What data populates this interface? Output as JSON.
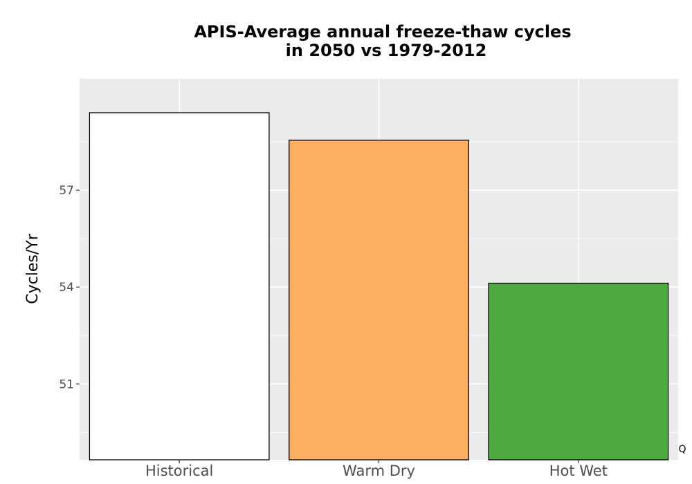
{
  "chart_data": {
    "type": "bar",
    "title_line1": "APIS-Average annual freeze-thaw cycles",
    "title_line2": "in 2050 vs 1979-2012",
    "ylabel": "Cycles/Yr",
    "xlabel": "",
    "categories": [
      "Historical",
      "Warm Dry",
      "Hot Wet"
    ],
    "values": [
      59.4,
      58.55,
      54.12
    ],
    "fill_colors": [
      "#ffffff",
      "#fdae61",
      "#4daa3f"
    ],
    "ylim": [
      48.65,
      60.45
    ],
    "yticks": [
      51,
      54,
      57
    ],
    "ytick_labels": [
      "51",
      "54",
      "57"
    ],
    "grid": true,
    "legend": "none",
    "corner_note": "Q"
  }
}
